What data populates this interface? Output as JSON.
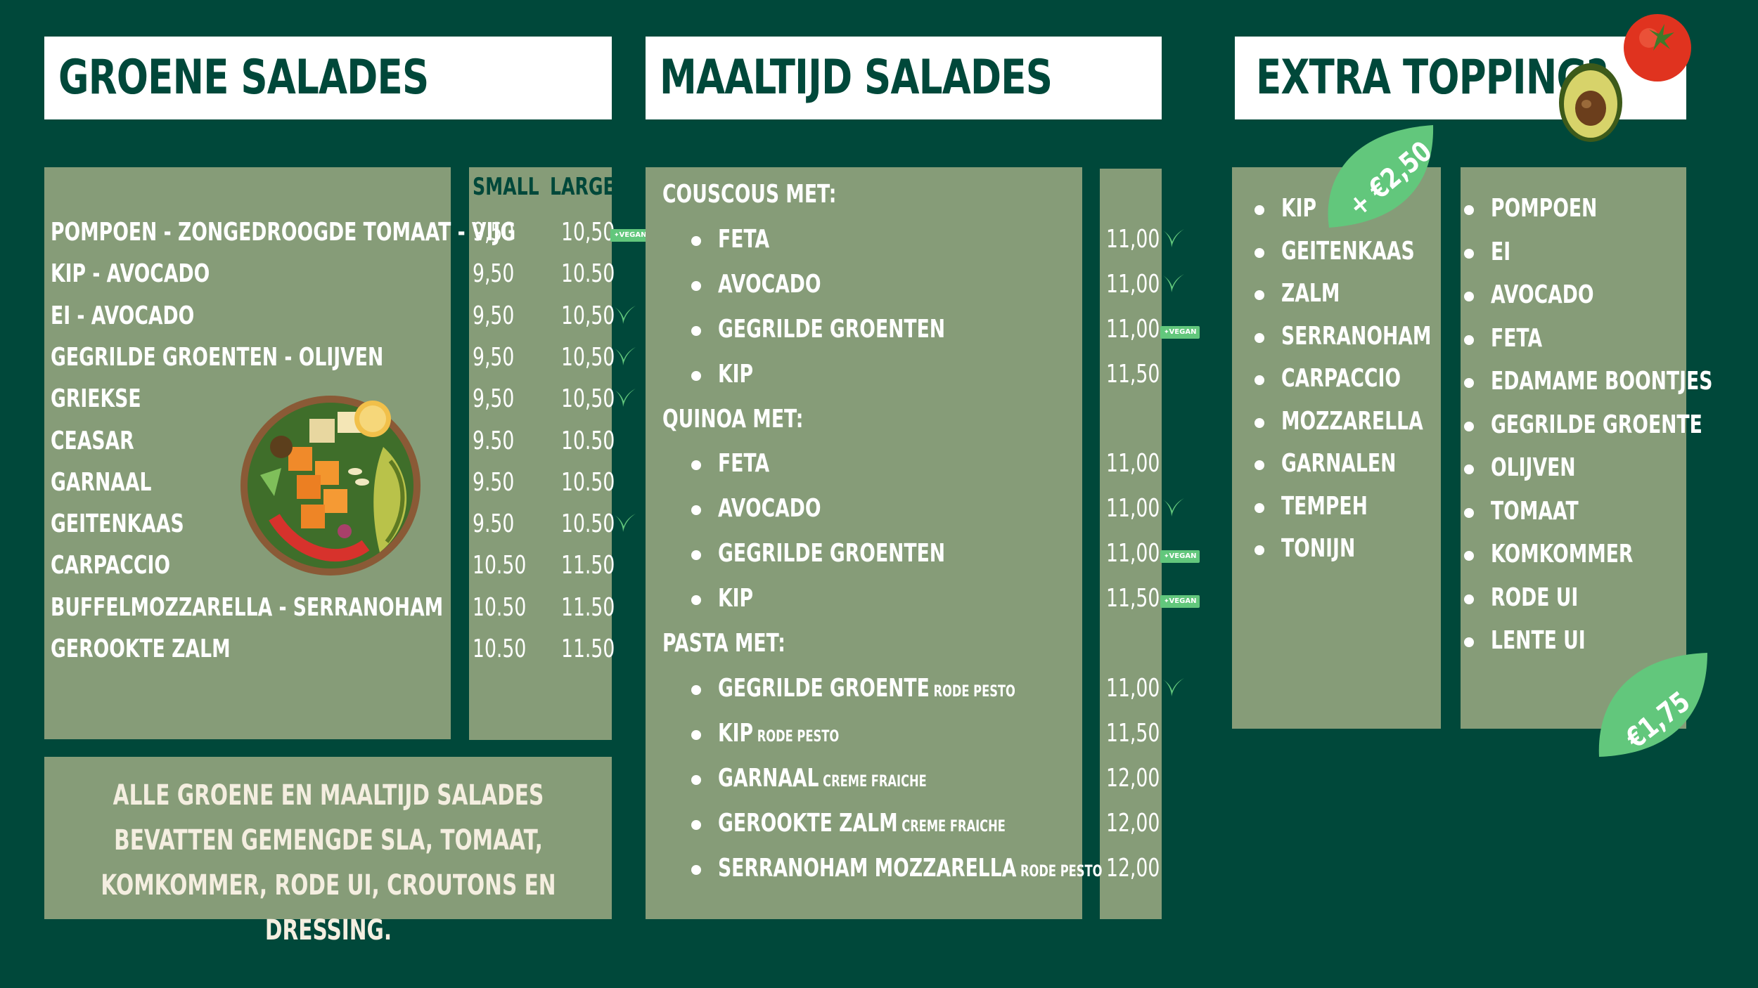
{
  "headers": {
    "groene": "GROENE SALADES",
    "maaltijd": "MAALTIJD SALADES",
    "extra": "EXTRA TOPPING?"
  },
  "groene": {
    "col_small": "SMALL",
    "col_large": "LARGE",
    "items": [
      {
        "name": "POMPOEN - ZONGEDROOGDE TOMAAT - VIJG",
        "small": "9,50",
        "large": "10,50",
        "tag": "vegan"
      },
      {
        "name": "KIP - AVOCADO",
        "small": "9,50",
        "large": "10.50",
        "tag": ""
      },
      {
        "name": "EI - AVOCADO",
        "small": "9,50",
        "large": "10,50",
        "tag": "leaf"
      },
      {
        "name": "GEGRILDE GROENTEN - OLIJVEN",
        "small": "9,50",
        "large": "10,50",
        "tag": "leaf"
      },
      {
        "name": "GRIEKSE",
        "small": "9,50",
        "large": "10,50",
        "tag": "leaf"
      },
      {
        "name": "CEASAR",
        "small": "9.50",
        "large": "10.50",
        "tag": ""
      },
      {
        "name": "GARNAAL",
        "small": "9.50",
        "large": "10.50",
        "tag": ""
      },
      {
        "name": "GEITENKAAS",
        "small": "9.50",
        "large": "10.50",
        "tag": "leaf"
      },
      {
        "name": "CARPACCIO",
        "small": "10.50",
        "large": "11.50",
        "tag": ""
      },
      {
        "name": "BUFFELMOZZARELLA - SERRANOHAM",
        "small": "10.50",
        "large": "11.50",
        "tag": ""
      },
      {
        "name": "GEROOKTE ZALM",
        "small": "10.50",
        "large": "11.50",
        "tag": ""
      }
    ],
    "note": "ALLE GROENE EN MAALTIJD SALADES BEVATTEN GEMENGDE SLA, TOMAAT, KOMKOMMER, RODE UI, CROUTONS EN DRESSING."
  },
  "maaltijd": {
    "sections": [
      {
        "title": "COUSCOUS MET:",
        "items": [
          {
            "name": "FETA",
            "sub": "",
            "price": "11,00",
            "tag": "leaf"
          },
          {
            "name": "AVOCADO",
            "sub": "",
            "price": "11,00",
            "tag": "leaf"
          },
          {
            "name": "GEGRILDE GROENTEN",
            "sub": "",
            "price": "11,00",
            "tag": "vegan"
          },
          {
            "name": "KIP",
            "sub": "",
            "price": "11,50",
            "tag": ""
          }
        ]
      },
      {
        "title": "QUINOA MET:",
        "items": [
          {
            "name": "FETA",
            "sub": "",
            "price": "11,00",
            "tag": ""
          },
          {
            "name": "AVOCADO",
            "sub": "",
            "price": "11,00",
            "tag": "leaf"
          },
          {
            "name": "GEGRILDE GROENTEN",
            "sub": "",
            "price": "11,00",
            "tag": "vegan"
          },
          {
            "name": "KIP",
            "sub": "",
            "price": "11,50",
            "tag": "vegan"
          }
        ]
      },
      {
        "title": "PASTA MET:",
        "items": [
          {
            "name": "GEGRILDE GROENTE",
            "sub": "RODE PESTO",
            "price": "11,00",
            "tag": "leaf"
          },
          {
            "name": "KIP",
            "sub": "RODE PESTO",
            "price": "11,50",
            "tag": ""
          },
          {
            "name": "GARNAAL",
            "sub": "CREME FRAICHE",
            "price": "12,00",
            "tag": ""
          },
          {
            "name": "GEROOKTE ZALM",
            "sub": "CREME FRAICHE",
            "price": "12,00",
            "tag": ""
          },
          {
            "name": "SERRANOHAM MOZZARELLA",
            "sub": "RODE PESTO",
            "price": "12,00",
            "tag": ""
          }
        ]
      }
    ]
  },
  "vegan_label": "VEGAN",
  "extra": {
    "price_a": "+ €2,50",
    "price_b": "€1,75",
    "list_a": [
      "KIP",
      "GEITENKAAS",
      "ZALM",
      "SERRANOHAM",
      "CARPACCIO",
      "MOZZARELLA",
      "GARNALEN",
      "TEMPEH",
      "TONIJN"
    ],
    "list_b": [
      "POMPOEN",
      "EI",
      "AVOCADO",
      "FETA",
      "EDAMAME BOONTJES",
      "GEGRILDE GROENTE",
      "OLIJVEN",
      "TOMAAT",
      "KOMKOMMER",
      "RODE UI",
      "LENTE UI"
    ]
  },
  "colors": {
    "background": "#00483a",
    "panel": "#869c78",
    "leaf_badge": "#62c77c"
  },
  "icons": [
    "leaf-icon",
    "vegan-badge-icon",
    "salad-bowl-image",
    "avocado-image",
    "tomato-image"
  ]
}
